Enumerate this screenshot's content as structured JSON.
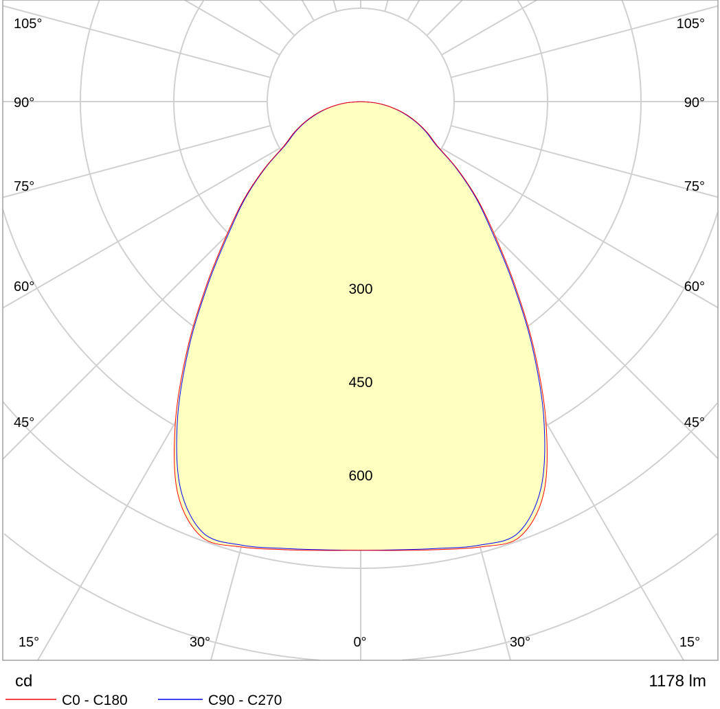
{
  "chart_data": {
    "type": "polar",
    "unit_label": "cd",
    "flux_label": "1178 lm",
    "angle_labels": {
      "left": [
        "105°",
        "90°",
        "75°",
        "60°",
        "45°",
        "30°",
        "15°"
      ],
      "bottom_center": "0°",
      "right": [
        "105°",
        "90°",
        "75°",
        "60°",
        "45°",
        "30°",
        "15°"
      ]
    },
    "radial_ticks": [
      150,
      300,
      450,
      600,
      750,
      900
    ],
    "radial_tick_labels": [
      "300",
      "450",
      "600"
    ],
    "angular_grid_step_deg": 15,
    "gamma_deg": [
      0,
      5,
      10,
      15,
      20,
      25,
      30,
      35,
      40,
      45,
      50,
      55,
      60,
      65,
      70,
      75,
      80,
      85,
      90
    ],
    "series": [
      {
        "name": "C0 - C180",
        "color": "#ff0000",
        "values": [
          721,
          724,
          731,
          741,
          745,
          695,
          595,
          485,
          385,
          305,
          245,
          190,
          142,
          118,
          95,
          72,
          48,
          24,
          0
        ]
      },
      {
        "name": "C90 - C270",
        "color": "#0000ff",
        "values": [
          721,
          723,
          729,
          738,
          738,
          685,
          588,
          480,
          380,
          300,
          242,
          188,
          140,
          116,
          93,
          70,
          47,
          23,
          0
        ]
      }
    ],
    "fill_color": "#ffffc0",
    "grid": true,
    "legend_placement": "bottom-left"
  }
}
